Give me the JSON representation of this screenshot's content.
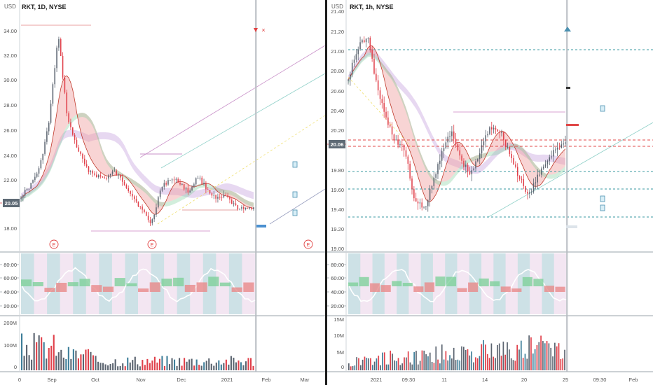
{
  "charts": {
    "left": {
      "title": "RKT, 1D, NYSE",
      "currency": "USD",
      "price_axis": [
        "34.00",
        "32.00",
        "30.00",
        "28.00",
        "26.00",
        "24.00",
        "22.00",
        "18.00"
      ],
      "last_price": "20.05",
      "osc_axis": [
        "80.00",
        "60.00",
        "40.00",
        "20.00"
      ],
      "vol_axis": [
        "200M",
        "100M",
        "0"
      ],
      "time_axis": [
        "0",
        "Sep",
        "Oct",
        "Nov",
        "Dec",
        "2021",
        "Feb",
        "Mar"
      ],
      "earnings_label": "E",
      "close_marker": "×"
    },
    "right": {
      "title": "RKT, 1h, NYSE",
      "currency": "USD",
      "price_axis": [
        "21.40",
        "21.20",
        "21.00",
        "20.80",
        "20.60",
        "20.40",
        "20.20",
        "19.80",
        "19.60",
        "19.40",
        "19.20",
        "19.00"
      ],
      "last_price": "20.06",
      "osc_axis": [
        "80.00",
        "60.00",
        "40.00",
        "20.00"
      ],
      "vol_axis": [
        "15M",
        "10M",
        "5M",
        "0"
      ],
      "time_axis": [
        "2021",
        "09:30",
        "11",
        "14",
        "20",
        "25",
        "09:30",
        "Feb"
      ]
    }
  },
  "colors": {
    "up": "#5b6470",
    "down": "#e0404a",
    "blue_bar": "#3f7f9a",
    "green_band": "#7fcf9a",
    "red_band": "#f0a0a0",
    "purple_band": "#c9a8e0",
    "teal_band": "#9fdcd8",
    "axis_label_bg": "#5e6a75"
  }
}
